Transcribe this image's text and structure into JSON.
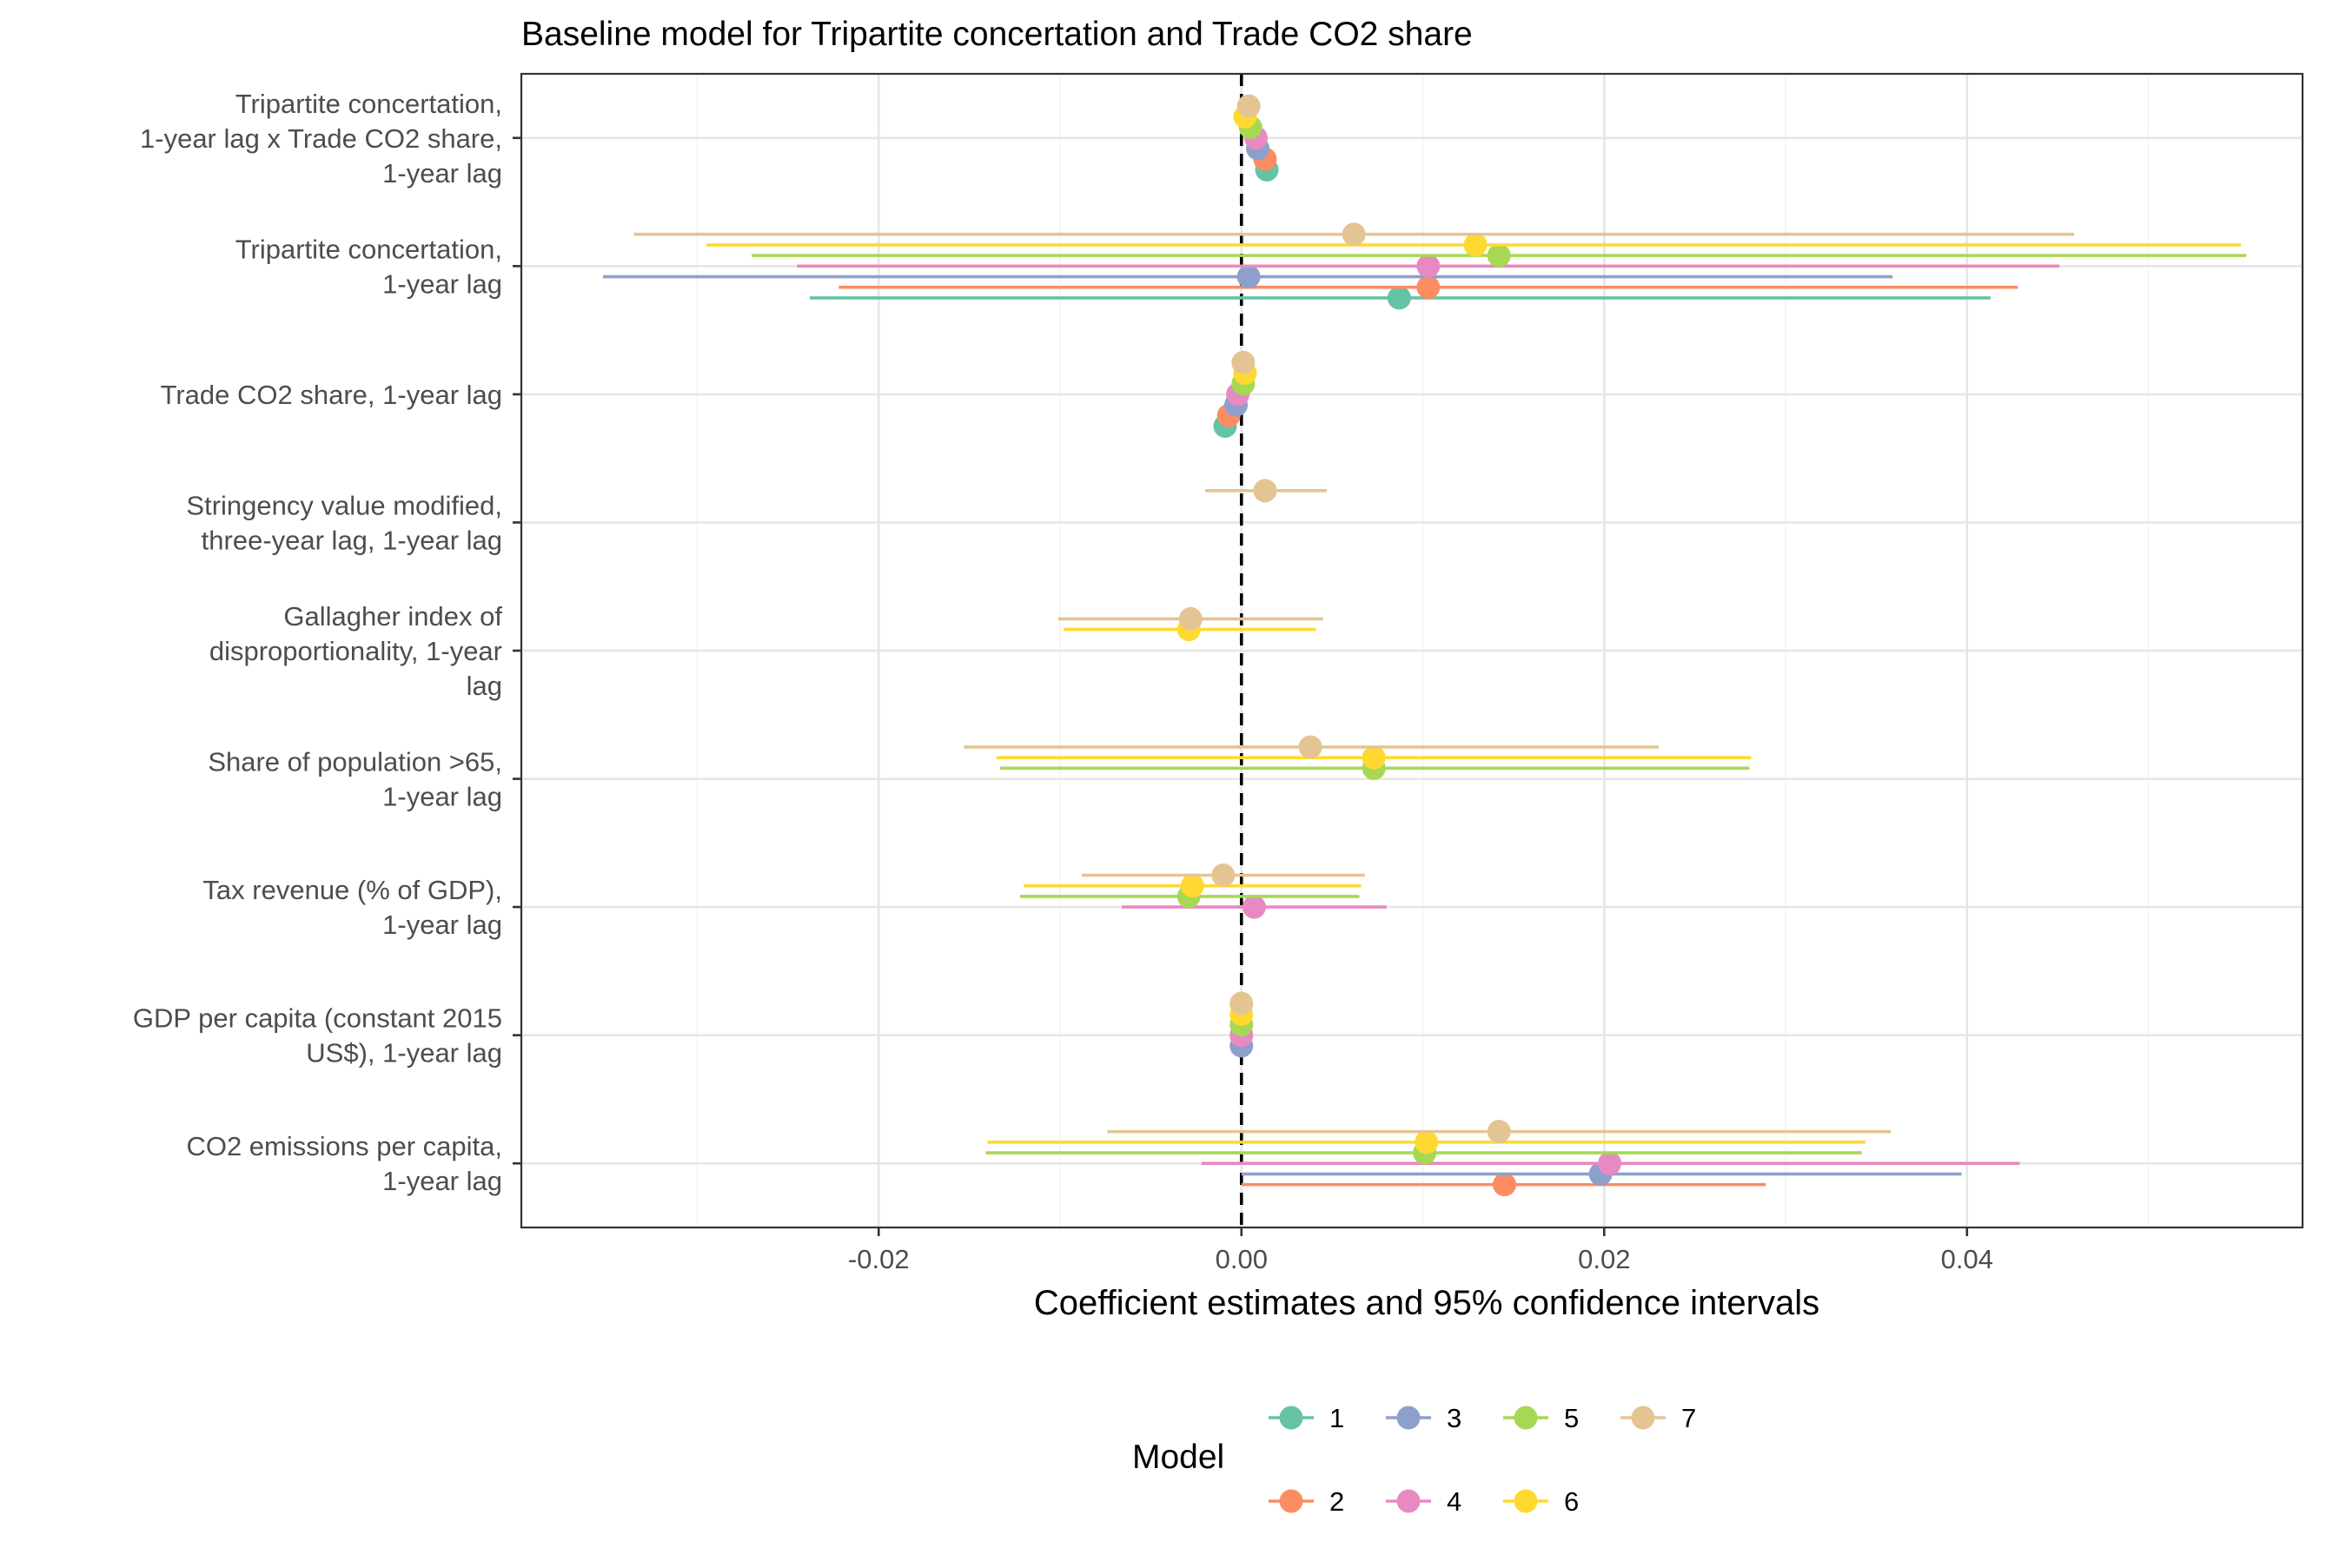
{
  "chart_data": {
    "type": "scatter",
    "subtype": "coefficient-plot",
    "title": "Baseline model for Tripartite concertation and Trade CO2 share",
    "xlabel": "Coefficient estimates and 95% confidence intervals",
    "xlim": [
      -0.0397,
      0.0585
    ],
    "xticks": [
      -0.02,
      0.0,
      0.02,
      0.04
    ],
    "xtick_labels": [
      "-0.02",
      "0.00",
      "0.02",
      "0.04"
    ],
    "grid": true,
    "zero_line": "dashed",
    "legend": {
      "title": "Model",
      "placement": "bottom",
      "entries": [
        "1",
        "2",
        "3",
        "4",
        "5",
        "6",
        "7"
      ]
    },
    "models": [
      {
        "name": "1",
        "color": "#66C2A5"
      },
      {
        "name": "2",
        "color": "#FC8D62"
      },
      {
        "name": "3",
        "color": "#8DA0CB"
      },
      {
        "name": "4",
        "color": "#E78AC3"
      },
      {
        "name": "5",
        "color": "#A6D854"
      },
      {
        "name": "6",
        "color": "#FFD92F"
      },
      {
        "name": "7",
        "color": "#E5C494"
      }
    ],
    "categories": [
      {
        "label": [
          "Tripartite concertation,",
          "1-year lag x Trade CO2 share,",
          "1-year lag"
        ],
        "estimates": [
          {
            "model": "1",
            "est": 0.0014,
            "low": 0.0014,
            "high": 0.0014
          },
          {
            "model": "2",
            "est": 0.0013,
            "low": 0.0013,
            "high": 0.0013
          },
          {
            "model": "3",
            "est": 0.0009,
            "low": 0.0009,
            "high": 0.0009
          },
          {
            "model": "4",
            "est": 0.0008,
            "low": 0.0008,
            "high": 0.0008
          },
          {
            "model": "5",
            "est": 0.0005,
            "low": 0.0005,
            "high": 0.0005
          },
          {
            "model": "6",
            "est": 0.0002,
            "low": 0.0002,
            "high": 0.0002
          },
          {
            "model": "7",
            "est": 0.0004,
            "low": 0.0004,
            "high": 0.0004
          }
        ]
      },
      {
        "label": [
          "Tripartite concertation,",
          "1-year lag"
        ],
        "estimates": [
          {
            "model": "1",
            "est": 0.0087,
            "low": -0.0238,
            "high": 0.0413
          },
          {
            "model": "2",
            "est": 0.0103,
            "low": -0.0222,
            "high": 0.0428
          },
          {
            "model": "3",
            "est": 0.0004,
            "low": -0.0352,
            "high": 0.0359
          },
          {
            "model": "4",
            "est": 0.0103,
            "low": -0.0245,
            "high": 0.0451
          },
          {
            "model": "5",
            "est": 0.0142,
            "low": -0.027,
            "high": 0.0554
          },
          {
            "model": "6",
            "est": 0.0129,
            "low": -0.0295,
            "high": 0.0551
          },
          {
            "model": "7",
            "est": 0.0062,
            "low": -0.0335,
            "high": 0.0459
          }
        ]
      },
      {
        "label": [
          "Trade CO2 share, 1-year lag"
        ],
        "estimates": [
          {
            "model": "1",
            "est": -0.0009,
            "low": -0.0009,
            "high": -0.0009
          },
          {
            "model": "2",
            "est": -0.0007,
            "low": -0.0007,
            "high": -0.0007
          },
          {
            "model": "3",
            "est": -0.0003,
            "low": -0.0003,
            "high": -0.0003
          },
          {
            "model": "4",
            "est": -0.0002,
            "low": -0.0002,
            "high": -0.0002
          },
          {
            "model": "5",
            "est": 0.0001,
            "low": 0.0001,
            "high": 0.0001
          },
          {
            "model": "6",
            "est": 0.0002,
            "low": 0.0002,
            "high": 0.0002
          },
          {
            "model": "7",
            "est": 0.0001,
            "low": 0.0001,
            "high": 0.0001
          }
        ]
      },
      {
        "label": [
          "Stringency value modified,",
          "three-year lag, 1-year lag"
        ],
        "estimates": [
          {
            "model": "7",
            "est": 0.0013,
            "low": -0.002,
            "high": 0.0047
          }
        ]
      },
      {
        "label": [
          "Gallagher index of",
          "disproportionality, 1-year",
          "lag"
        ],
        "estimates": [
          {
            "model": "6",
            "est": -0.0029,
            "low": -0.0098,
            "high": 0.0041
          },
          {
            "model": "7",
            "est": -0.0028,
            "low": -0.0101,
            "high": 0.0045
          }
        ]
      },
      {
        "label": [
          "Share of population >65,",
          "1-year lag"
        ],
        "estimates": [
          {
            "model": "5",
            "est": 0.0073,
            "low": -0.0133,
            "high": 0.028
          },
          {
            "model": "6",
            "est": 0.0073,
            "low": -0.0135,
            "high": 0.0281
          },
          {
            "model": "7",
            "est": 0.0038,
            "low": -0.0153,
            "high": 0.023
          }
        ]
      },
      {
        "label": [
          "Tax revenue (% of GDP),",
          "1-year lag"
        ],
        "estimates": [
          {
            "model": "4",
            "est": 0.0007,
            "low": -0.0066,
            "high": 0.008
          },
          {
            "model": "5",
            "est": -0.0029,
            "low": -0.0122,
            "high": 0.0065
          },
          {
            "model": "6",
            "est": -0.0027,
            "low": -0.012,
            "high": 0.0066
          },
          {
            "model": "7",
            "est": -0.001,
            "low": -0.0088,
            "high": 0.0068
          }
        ]
      },
      {
        "label": [
          "GDP per capita (constant 2015",
          "US$), 1-year lag"
        ],
        "estimates": [
          {
            "model": "3",
            "est": 0.0,
            "low": 0.0,
            "high": 0.0
          },
          {
            "model": "4",
            "est": 0.0,
            "low": 0.0,
            "high": 0.0
          },
          {
            "model": "5",
            "est": 0.0,
            "low": 0.0,
            "high": 0.0
          },
          {
            "model": "6",
            "est": 0.0,
            "low": 0.0,
            "high": 0.0
          },
          {
            "model": "7",
            "est": 0.0,
            "low": 0.0,
            "high": 0.0
          }
        ]
      },
      {
        "label": [
          "CO2 emissions per capita,",
          "1-year lag"
        ],
        "estimates": [
          {
            "model": "2",
            "est": 0.0145,
            "low": 0.0,
            "high": 0.0289
          },
          {
            "model": "3",
            "est": 0.0198,
            "low": 0.0,
            "high": 0.0397
          },
          {
            "model": "4",
            "est": 0.0203,
            "low": -0.0022,
            "high": 0.0429
          },
          {
            "model": "5",
            "est": 0.0101,
            "low": -0.0141,
            "high": 0.0342
          },
          {
            "model": "6",
            "est": 0.0102,
            "low": -0.014,
            "high": 0.0344
          },
          {
            "model": "7",
            "est": 0.0142,
            "low": -0.0074,
            "high": 0.0358
          }
        ]
      }
    ]
  }
}
